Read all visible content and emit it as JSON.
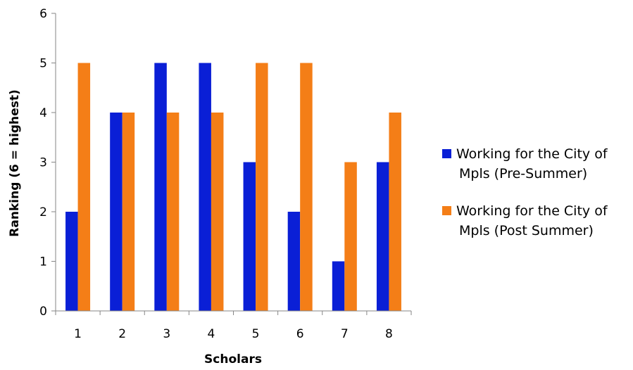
{
  "chart_data": {
    "type": "bar",
    "title": "",
    "xlabel": "Scholars",
    "ylabel": "Ranking (6 = highest)",
    "categories": [
      "1",
      "2",
      "3",
      "4",
      "5",
      "6",
      "7",
      "8"
    ],
    "ylim": [
      0,
      6
    ],
    "yticks": [
      0,
      1,
      2,
      3,
      4,
      5,
      6
    ],
    "grid": false,
    "legend_position": "right",
    "series": [
      {
        "name": "Working for the City of Mpls (Pre-Summer)",
        "legend_lines": [
          "Working for the City of",
          "Mpls (Pre-Summer)"
        ],
        "color": "#0A1FD6",
        "values": [
          2,
          4,
          5,
          5,
          3,
          2,
          1,
          3
        ]
      },
      {
        "name": "Working for the City of Mpls (Post Summer)",
        "legend_lines": [
          "Working for the City of",
          "Mpls (Post Summer)"
        ],
        "color": "#F47E17",
        "values": [
          5,
          4,
          4,
          4,
          5,
          5,
          3,
          4
        ]
      }
    ]
  }
}
